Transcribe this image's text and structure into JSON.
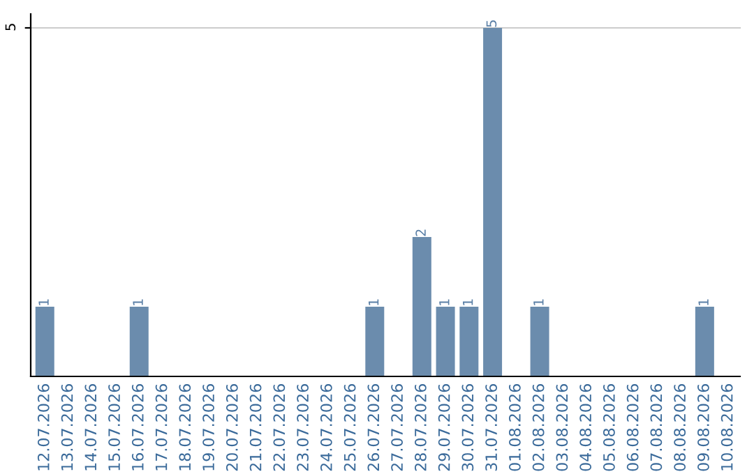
{
  "chart_data": {
    "type": "bar",
    "categories": [
      "12.07.2026",
      "13.07.2026",
      "14.07.2026",
      "15.07.2026",
      "16.07.2026",
      "17.07.2026",
      "18.07.2026",
      "19.07.2026",
      "20.07.2026",
      "21.07.2026",
      "22.07.2026",
      "23.07.2026",
      "24.07.2026",
      "25.07.2026",
      "26.07.2026",
      "27.07.2026",
      "28.07.2026",
      "29.07.2026",
      "30.07.2026",
      "31.07.2026",
      "01.08.2026",
      "02.08.2026",
      "03.08.2026",
      "04.08.2026",
      "05.08.2026",
      "06.08.2026",
      "07.08.2026",
      "08.08.2026",
      "09.08.2026",
      "10.08.2026"
    ],
    "values": [
      1,
      0,
      0,
      0,
      1,
      0,
      0,
      0,
      0,
      0,
      0,
      0,
      0,
      0,
      1,
      0,
      2,
      1,
      1,
      5,
      0,
      1,
      0,
      0,
      0,
      0,
      0,
      0,
      1,
      0
    ],
    "value_labels": [
      "1",
      null,
      null,
      null,
      "1",
      null,
      null,
      null,
      null,
      null,
      null,
      null,
      null,
      null,
      "1",
      null,
      "2",
      "1",
      "1",
      "5",
      null,
      "1",
      null,
      null,
      null,
      null,
      null,
      null,
      "1",
      null
    ],
    "color": "#6b8cad",
    "ylim": [
      0,
      5.2
    ],
    "yticks": [
      5
    ],
    "grid": "y"
  }
}
